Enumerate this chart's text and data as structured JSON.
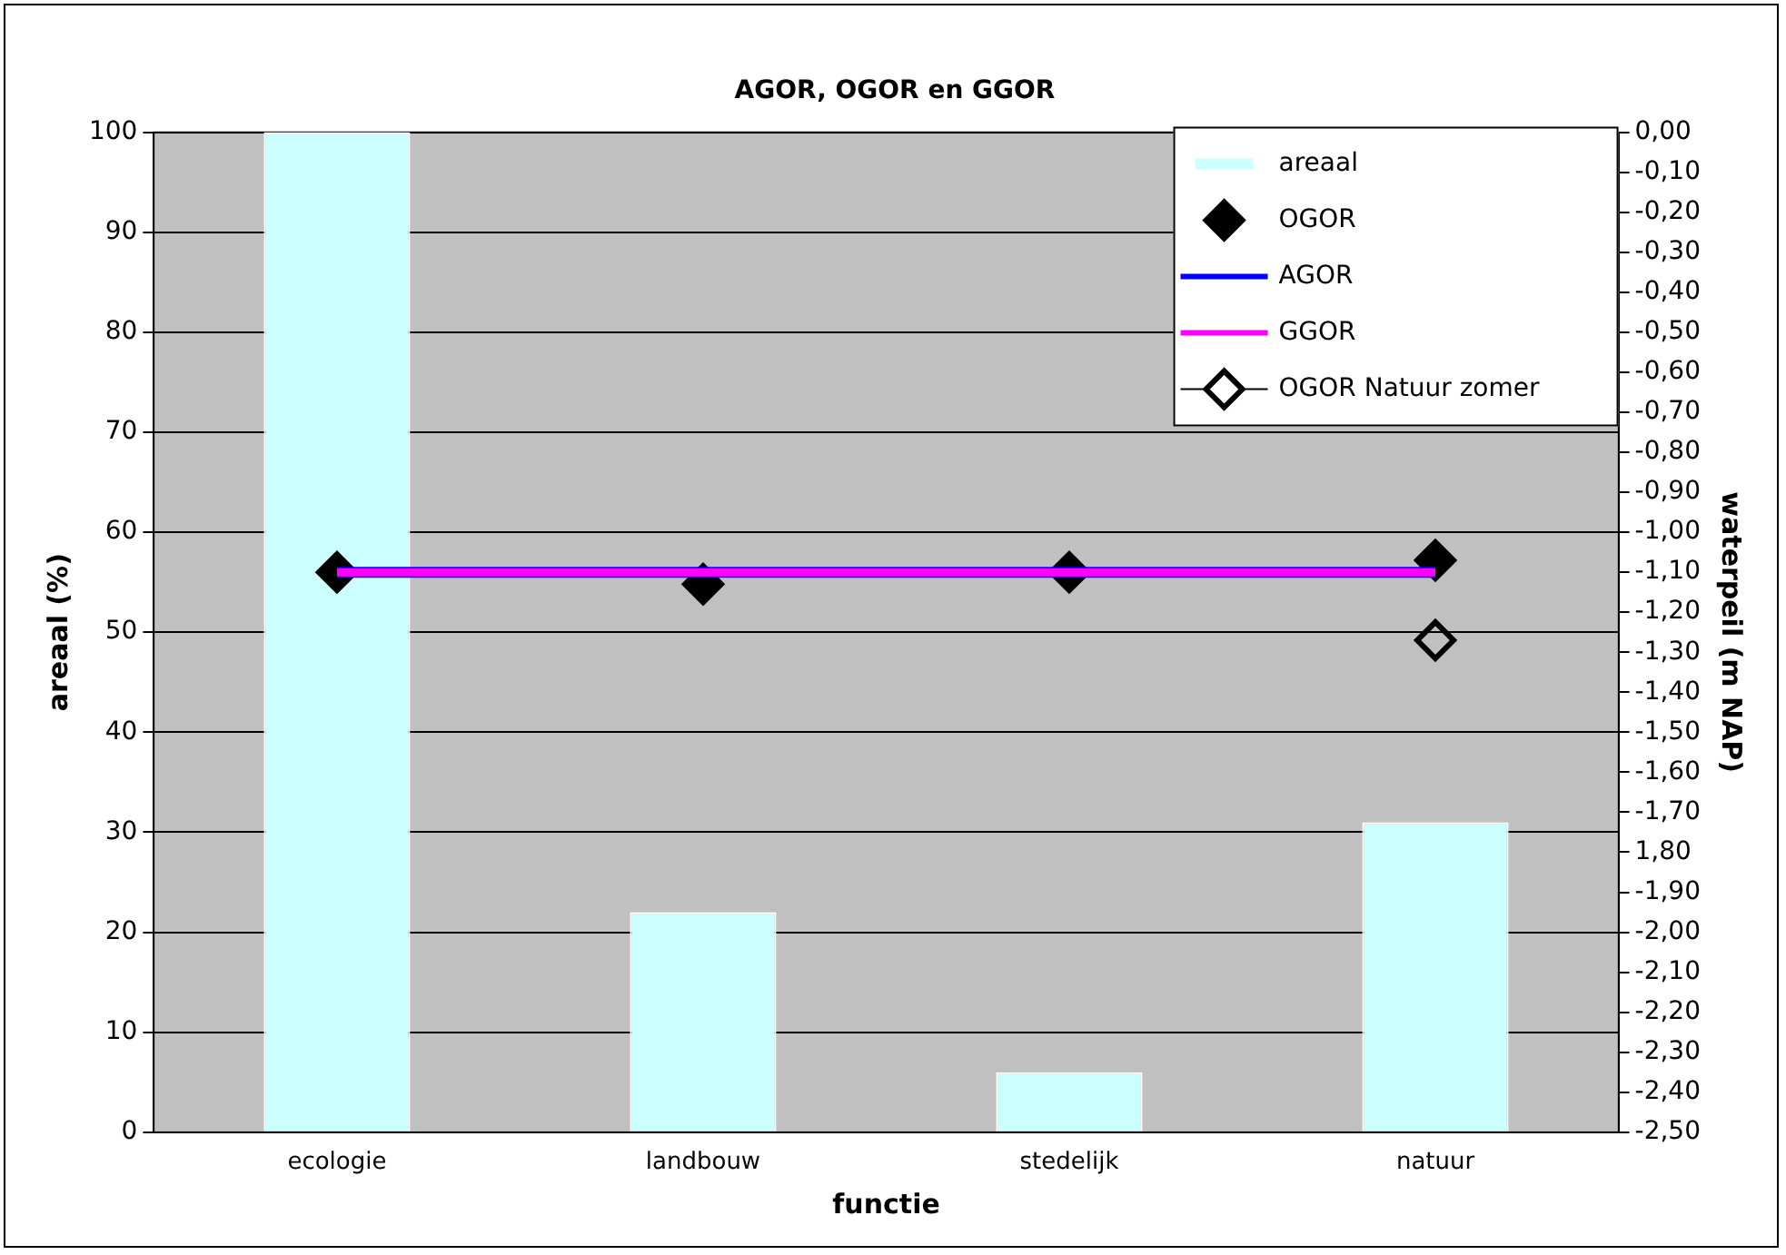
{
  "chart_data": {
    "type": "bar",
    "title": "AGOR, OGOR en GGOR",
    "xlabel": "functie",
    "ylabel": "areaal (%)",
    "y2label": "waterpeil (m NAP)",
    "categories": [
      "ecologie",
      "landbouw",
      "stedelijk",
      "natuur"
    ],
    "series": [
      {
        "name": "areaal",
        "type": "bar",
        "color": "#ccffff",
        "values": [
          100,
          22,
          6,
          31
        ]
      },
      {
        "name": "OGOR",
        "type": "scatter",
        "axis": "y2",
        "color": "#000000",
        "marker": "diamond",
        "x": [
          "ecologie",
          "landbouw",
          "stedelijk",
          "natuur"
        ],
        "values": [
          -1.1,
          -1.13,
          -1.1,
          -1.07
        ]
      },
      {
        "name": "AGOR",
        "type": "line",
        "axis": "y2",
        "color": "#0000ff",
        "marker": "none",
        "values": [
          -1.1,
          -1.1,
          -1.1,
          -1.1
        ]
      },
      {
        "name": "GGOR",
        "type": "line",
        "axis": "y2",
        "color": "#ff00ff",
        "marker": "none",
        "values": [
          -1.1,
          -1.1,
          -1.1,
          -1.1
        ]
      },
      {
        "name": "OGOR Natuur zomer",
        "type": "scatter",
        "axis": "y2",
        "color": "#000000",
        "marker": "diamond",
        "x": [
          "natuur"
        ],
        "values": [
          -1.27
        ]
      }
    ],
    "ylim": [
      0,
      100
    ],
    "yticks": [
      0,
      10,
      20,
      30,
      40,
      50,
      60,
      70,
      80,
      90,
      100
    ],
    "y2lim": [
      -2.5,
      0
    ],
    "y2ticks": [
      {
        "value": 0,
        "label": "0,00"
      },
      {
        "value": -0.1,
        "label": "-0,10"
      },
      {
        "value": -0.2,
        "label": "-0,20"
      },
      {
        "value": -0.3,
        "label": "-0,30"
      },
      {
        "value": -0.4,
        "label": "-0,40"
      },
      {
        "value": -0.5,
        "label": "-0,50"
      },
      {
        "value": -0.6,
        "label": "-0,60"
      },
      {
        "value": -0.7,
        "label": "-0,70"
      },
      {
        "value": -0.8,
        "label": "-0,80"
      },
      {
        "value": -0.9,
        "label": "-0,90"
      },
      {
        "value": -1,
        "label": "-1,00"
      },
      {
        "value": -1.1,
        "label": "-1,10"
      },
      {
        "value": -1.2,
        "label": "-1,20"
      },
      {
        "value": -1.3,
        "label": "-1,30"
      },
      {
        "value": -1.4,
        "label": "-1,40"
      },
      {
        "value": -1.5,
        "label": "-1,50"
      },
      {
        "value": -1.6,
        "label": "-1,60"
      },
      {
        "value": -1.7,
        "label": "-1,70"
      },
      {
        "value": -1.8,
        "label": "1,80"
      },
      {
        "value": -1.9,
        "label": "-1,90"
      },
      {
        "value": -2,
        "label": "-2,00"
      },
      {
        "value": -2.1,
        "label": "-2,10"
      },
      {
        "value": -2.2,
        "label": "-2,20"
      },
      {
        "value": -2.3,
        "label": "-2,30"
      },
      {
        "value": -2.4,
        "label": "-2,40"
      },
      {
        "value": -2.5,
        "label": "-2,50"
      }
    ],
    "grid": "y",
    "legend": "top right"
  }
}
